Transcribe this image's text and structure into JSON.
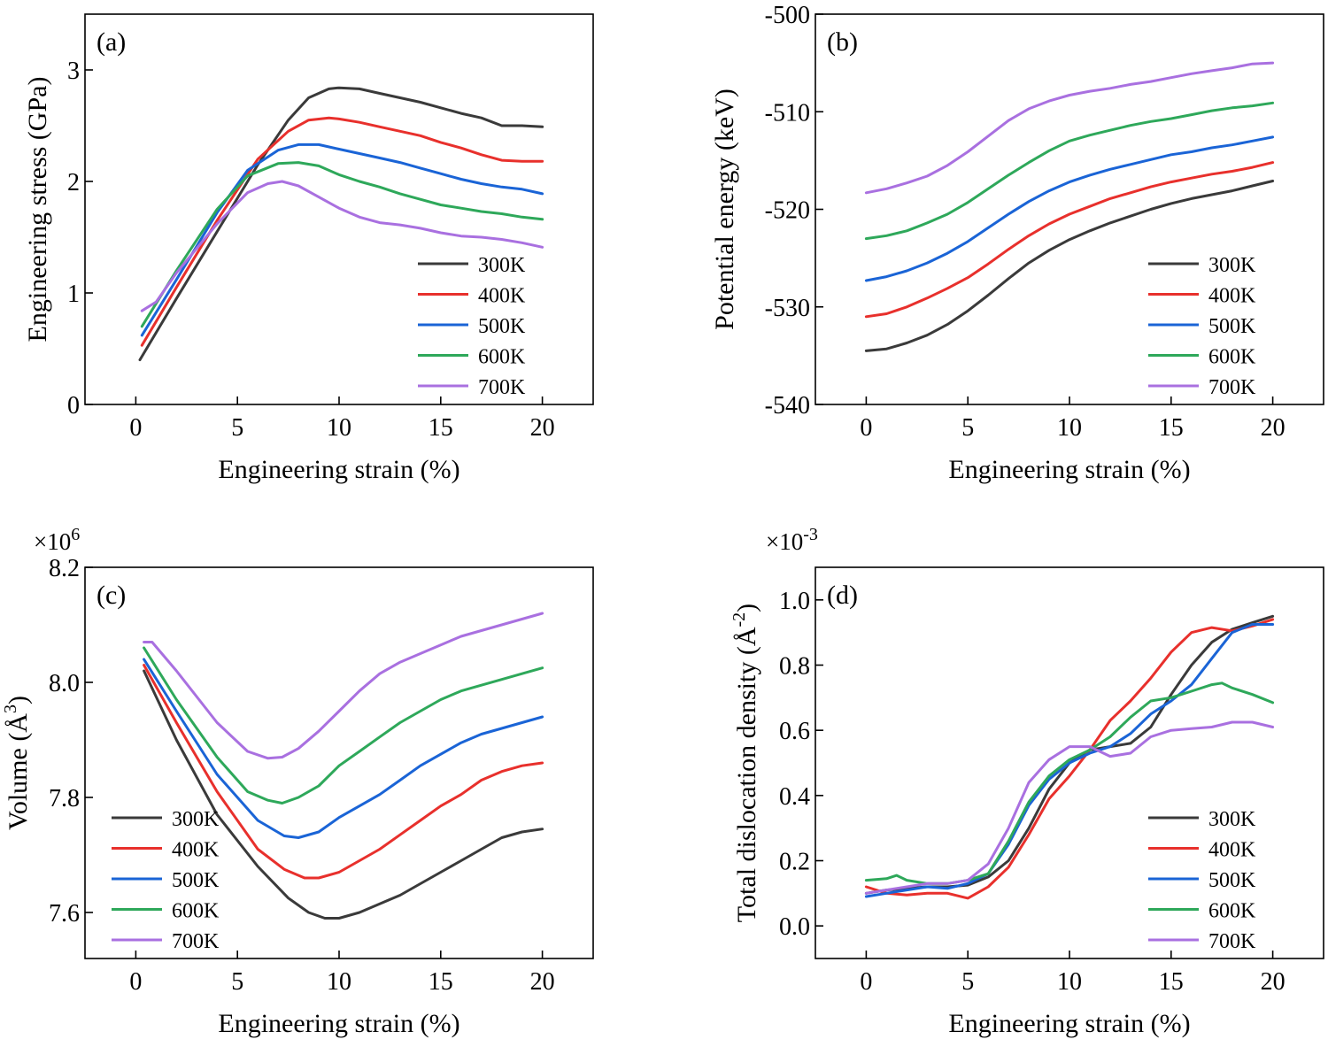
{
  "colors": {
    "300K": "#3a3a3a",
    "400K": "#e8302c",
    "500K": "#1a64d6",
    "600K": "#2ea85a",
    "700K": "#a970e0"
  },
  "chart_data": [
    {
      "id": "a",
      "type": "line",
      "panel_label": "(a)",
      "xlabel": "Engineering strain (%)",
      "ylabel": "Engineering stress (GPa)",
      "xlim": [
        -2.5,
        22.5
      ],
      "ylim": [
        0,
        3.5
      ],
      "xticks": [
        0,
        5,
        10,
        15,
        20
      ],
      "yticks": [
        0,
        1,
        2,
        3
      ],
      "xtick_labels": [
        "0",
        "5",
        "10",
        "15",
        "20"
      ],
      "ytick_labels": [
        "0",
        "1",
        "2",
        "3"
      ],
      "legend_position": "bottom-right",
      "series": [
        {
          "name": "300K",
          "x": [
            0.2,
            2,
            4,
            6,
            7.5,
            8.5,
            9.5,
            10,
            11,
            12,
            13,
            14,
            15,
            16,
            17,
            18,
            19,
            20
          ],
          "y": [
            0.4,
            0.95,
            1.55,
            2.15,
            2.55,
            2.75,
            2.83,
            2.84,
            2.83,
            2.79,
            2.75,
            2.71,
            2.66,
            2.61,
            2.57,
            2.5,
            2.5,
            2.49
          ]
        },
        {
          "name": "400K",
          "x": [
            0.3,
            2,
            4,
            6,
            7.5,
            8.5,
            9.5,
            10,
            11,
            12,
            13,
            14,
            15,
            16,
            17,
            18,
            19,
            20
          ],
          "y": [
            0.53,
            1.05,
            1.65,
            2.2,
            2.45,
            2.55,
            2.57,
            2.56,
            2.53,
            2.49,
            2.45,
            2.41,
            2.35,
            2.3,
            2.24,
            2.19,
            2.18,
            2.18
          ]
        },
        {
          "name": "500K",
          "x": [
            0.3,
            2,
            4,
            5.5,
            7,
            8,
            9,
            10,
            11,
            12,
            13,
            14,
            15,
            16,
            17,
            18,
            19,
            20
          ],
          "y": [
            0.62,
            1.12,
            1.72,
            2.1,
            2.28,
            2.33,
            2.33,
            2.29,
            2.25,
            2.21,
            2.17,
            2.12,
            2.07,
            2.02,
            1.98,
            1.95,
            1.93,
            1.89
          ]
        },
        {
          "name": "600K",
          "x": [
            0.3,
            2,
            4,
            5.5,
            7,
            8,
            9,
            10,
            11,
            12,
            13,
            14,
            15,
            16,
            17,
            18,
            19,
            20
          ],
          "y": [
            0.7,
            1.2,
            1.75,
            2.05,
            2.16,
            2.17,
            2.14,
            2.06,
            2.0,
            1.95,
            1.89,
            1.84,
            1.79,
            1.76,
            1.73,
            1.71,
            1.68,
            1.66
          ]
        },
        {
          "name": "700K",
          "x": [
            0.3,
            1,
            2,
            4,
            5.5,
            6.5,
            7.2,
            8,
            9,
            10,
            11,
            12,
            13,
            14,
            15,
            16,
            17,
            18,
            19,
            20
          ],
          "y": [
            0.84,
            0.92,
            1.18,
            1.62,
            1.9,
            1.98,
            2.0,
            1.96,
            1.86,
            1.76,
            1.68,
            1.63,
            1.61,
            1.58,
            1.54,
            1.51,
            1.5,
            1.48,
            1.45,
            1.41
          ]
        }
      ]
    },
    {
      "id": "b",
      "type": "line",
      "panel_label": "(b)",
      "xlabel": "Engineering strain (%)",
      "ylabel": "Potential energy (keV)",
      "xlim": [
        -2.5,
        22.5
      ],
      "ylim": [
        -540,
        -500
      ],
      "xticks": [
        0,
        5,
        10,
        15,
        20
      ],
      "yticks": [
        -540,
        -530,
        -520,
        -510,
        -500
      ],
      "xtick_labels": [
        "0",
        "5",
        "10",
        "15",
        "20"
      ],
      "ytick_labels": [
        "-540",
        "-530",
        "-520",
        "-510",
        "-500"
      ],
      "legend_position": "bottom-right",
      "series": [
        {
          "name": "300K",
          "x": [
            0,
            1,
            2,
            3,
            4,
            5,
            6,
            7,
            8,
            9,
            10,
            11,
            12,
            13,
            14,
            15,
            16,
            17,
            18,
            19,
            20
          ],
          "y": [
            -534.5,
            -534.3,
            -533.7,
            -532.9,
            -531.8,
            -530.4,
            -528.8,
            -527.1,
            -525.5,
            -524.2,
            -523.1,
            -522.2,
            -521.4,
            -520.7,
            -520.0,
            -519.4,
            -518.9,
            -518.5,
            -518.1,
            -517.6,
            -517.1
          ]
        },
        {
          "name": "400K",
          "x": [
            0,
            1,
            2,
            3,
            4,
            5,
            6,
            7,
            8,
            9,
            10,
            11,
            12,
            13,
            14,
            15,
            16,
            17,
            18,
            19,
            20
          ],
          "y": [
            -531.0,
            -530.7,
            -530.0,
            -529.1,
            -528.1,
            -527.0,
            -525.6,
            -524.1,
            -522.7,
            -521.5,
            -520.5,
            -519.7,
            -518.9,
            -518.3,
            -517.7,
            -517.2,
            -516.8,
            -516.4,
            -516.1,
            -515.7,
            -515.2
          ]
        },
        {
          "name": "500K",
          "x": [
            0,
            1,
            2,
            3,
            4,
            5,
            6,
            7,
            8,
            9,
            10,
            11,
            12,
            13,
            14,
            15,
            16,
            17,
            18,
            19,
            20
          ],
          "y": [
            -527.3,
            -526.9,
            -526.3,
            -525.5,
            -524.5,
            -523.3,
            -521.9,
            -520.5,
            -519.2,
            -518.1,
            -517.2,
            -516.5,
            -515.9,
            -515.4,
            -514.9,
            -514.4,
            -514.1,
            -513.7,
            -513.4,
            -513.0,
            -512.6
          ]
        },
        {
          "name": "600K",
          "x": [
            0,
            1,
            2,
            3,
            4,
            5,
            6,
            7,
            8,
            9,
            10,
            11,
            12,
            13,
            14,
            15,
            16,
            17,
            18,
            19,
            20
          ],
          "y": [
            -523.0,
            -522.7,
            -522.2,
            -521.4,
            -520.5,
            -519.3,
            -517.9,
            -516.5,
            -515.2,
            -514.0,
            -513.0,
            -512.4,
            -511.9,
            -511.4,
            -511.0,
            -510.7,
            -510.3,
            -509.9,
            -509.6,
            -509.4,
            -509.1
          ]
        },
        {
          "name": "700K",
          "x": [
            0,
            1,
            2,
            3,
            4,
            5,
            6,
            7,
            8,
            9,
            10,
            11,
            12,
            13,
            14,
            15,
            16,
            17,
            18,
            19,
            20
          ],
          "y": [
            -518.3,
            -517.9,
            -517.3,
            -516.6,
            -515.5,
            -514.1,
            -512.5,
            -510.9,
            -509.7,
            -508.9,
            -508.3,
            -507.9,
            -507.6,
            -507.2,
            -506.9,
            -506.5,
            -506.1,
            -505.8,
            -505.5,
            -505.1,
            -505.0
          ]
        }
      ]
    },
    {
      "id": "c",
      "type": "line",
      "panel_label": "(c)",
      "xlabel": "Engineering strain (%)",
      "ylabel": "Volume (Å³)",
      "ylabel_main": "Volume (Å",
      "ylabel_sup": "3",
      "ylabel_end": ")",
      "multiplier": "×10",
      "multiplier_exp": "6",
      "xlim": [
        -2.5,
        22.5
      ],
      "ylim": [
        7.52,
        8.2
      ],
      "xticks": [
        0,
        5,
        10,
        15,
        20
      ],
      "yticks": [
        7.6,
        7.8,
        8.0,
        8.2
      ],
      "xtick_labels": [
        "0",
        "5",
        "10",
        "15",
        "20"
      ],
      "ytick_labels": [
        "7.6",
        "7.8",
        "8.0",
        "8.2"
      ],
      "legend_position": "bottom-left",
      "series": [
        {
          "name": "300K",
          "x": [
            0.4,
            2,
            4,
            6,
            7.5,
            8.5,
            9.3,
            10,
            11,
            12,
            13,
            14,
            15,
            16,
            17,
            18,
            19,
            20
          ],
          "y": [
            8.02,
            7.9,
            7.77,
            7.68,
            7.625,
            7.6,
            7.59,
            7.59,
            7.6,
            7.615,
            7.63,
            7.65,
            7.67,
            7.69,
            7.71,
            7.73,
            7.74,
            7.745
          ]
        },
        {
          "name": "400K",
          "x": [
            0.4,
            2,
            4,
            6,
            7.3,
            8.3,
            9,
            10,
            11,
            12,
            13,
            14,
            15,
            16,
            17,
            18,
            19,
            20
          ],
          "y": [
            8.03,
            7.93,
            7.81,
            7.71,
            7.675,
            7.66,
            7.66,
            7.67,
            7.69,
            7.71,
            7.735,
            7.76,
            7.785,
            7.805,
            7.83,
            7.845,
            7.855,
            7.86
          ]
        },
        {
          "name": "500K",
          "x": [
            0.4,
            2,
            4,
            6,
            7.3,
            8,
            9,
            10,
            11,
            12,
            13,
            14,
            15,
            16,
            17,
            18,
            19,
            20
          ],
          "y": [
            8.04,
            7.95,
            7.84,
            7.76,
            7.733,
            7.73,
            7.74,
            7.765,
            7.785,
            7.805,
            7.83,
            7.855,
            7.875,
            7.895,
            7.91,
            7.92,
            7.93,
            7.94
          ]
        },
        {
          "name": "600K",
          "x": [
            0.4,
            2,
            4,
            5.5,
            6.5,
            7.2,
            8,
            9,
            10,
            11,
            12,
            13,
            14,
            15,
            16,
            17,
            18,
            19,
            20
          ],
          "y": [
            8.06,
            7.97,
            7.87,
            7.81,
            7.795,
            7.79,
            7.8,
            7.82,
            7.855,
            7.88,
            7.905,
            7.93,
            7.95,
            7.97,
            7.985,
            7.995,
            8.005,
            8.015,
            8.025
          ]
        },
        {
          "name": "700K",
          "x": [
            0.4,
            0.8,
            2,
            4,
            5.5,
            6.5,
            7.2,
            8,
            9,
            10,
            11,
            12,
            13,
            14,
            15,
            16,
            17,
            18,
            19,
            20
          ],
          "y": [
            8.07,
            8.07,
            8.02,
            7.93,
            7.88,
            7.868,
            7.87,
            7.885,
            7.915,
            7.95,
            7.985,
            8.015,
            8.035,
            8.05,
            8.065,
            8.08,
            8.09,
            8.1,
            8.11,
            8.12
          ]
        }
      ]
    },
    {
      "id": "d",
      "type": "line",
      "panel_label": "(d)",
      "xlabel": "Engineering strain (%)",
      "ylabel": "Total dislocation density (Å⁻²)",
      "ylabel_main": "Total dislocation density (Å",
      "ylabel_sup": "-2",
      "ylabel_end": ")",
      "multiplier": "×10",
      "multiplier_exp": "-3",
      "xlim": [
        -2.5,
        22.5
      ],
      "ylim": [
        -0.1,
        1.1
      ],
      "xticks": [
        0,
        5,
        10,
        15,
        20
      ],
      "yticks": [
        0.0,
        0.2,
        0.4,
        0.6,
        0.8,
        1.0
      ],
      "xtick_labels": [
        "0",
        "5",
        "10",
        "15",
        "20"
      ],
      "ytick_labels": [
        "0.0",
        "0.2",
        "0.4",
        "0.6",
        "0.8",
        "1.0"
      ],
      "legend_position": "bottom-right",
      "series": [
        {
          "name": "300K",
          "x": [
            0,
            1,
            2,
            3,
            4,
            5,
            6,
            7,
            8,
            9,
            10,
            11,
            12,
            13,
            14,
            15,
            16,
            17,
            18,
            19,
            20
          ],
          "y": [
            0.1,
            0.11,
            0.115,
            0.12,
            0.12,
            0.125,
            0.15,
            0.2,
            0.3,
            0.42,
            0.5,
            0.54,
            0.55,
            0.56,
            0.61,
            0.71,
            0.8,
            0.87,
            0.91,
            0.93,
            0.95
          ]
        },
        {
          "name": "400K",
          "x": [
            0,
            1,
            2,
            3,
            4,
            5,
            6,
            7,
            8,
            9,
            10,
            11,
            12,
            13,
            14,
            15,
            16,
            17,
            18,
            19,
            20
          ],
          "y": [
            0.12,
            0.1,
            0.095,
            0.1,
            0.1,
            0.085,
            0.12,
            0.18,
            0.28,
            0.39,
            0.46,
            0.54,
            0.63,
            0.69,
            0.76,
            0.84,
            0.9,
            0.915,
            0.905,
            0.92,
            0.94
          ]
        },
        {
          "name": "500K",
          "x": [
            0,
            1,
            2,
            3,
            4,
            5,
            6,
            7,
            8,
            9,
            10,
            11,
            12,
            13,
            14,
            15,
            16,
            17,
            18,
            19,
            20
          ],
          "y": [
            0.09,
            0.1,
            0.11,
            0.12,
            0.115,
            0.13,
            0.16,
            0.25,
            0.37,
            0.45,
            0.5,
            0.53,
            0.55,
            0.59,
            0.65,
            0.69,
            0.74,
            0.82,
            0.9,
            0.925,
            0.925
          ]
        },
        {
          "name": "600K",
          "x": [
            0,
            1,
            1.5,
            2,
            3,
            4,
            5,
            6,
            7,
            8,
            9,
            10,
            11,
            12,
            13,
            14,
            15,
            16,
            17,
            17.5,
            18,
            19,
            20
          ],
          "y": [
            0.14,
            0.145,
            0.155,
            0.14,
            0.13,
            0.13,
            0.14,
            0.16,
            0.26,
            0.38,
            0.46,
            0.51,
            0.54,
            0.58,
            0.64,
            0.69,
            0.7,
            0.72,
            0.74,
            0.745,
            0.73,
            0.71,
            0.685
          ]
        },
        {
          "name": "700K",
          "x": [
            0,
            1,
            2,
            3,
            4,
            5,
            6,
            7,
            8,
            9,
            10,
            11,
            12,
            13,
            14,
            15,
            16,
            17,
            18,
            19,
            20
          ],
          "y": [
            0.1,
            0.11,
            0.12,
            0.13,
            0.13,
            0.14,
            0.19,
            0.3,
            0.44,
            0.51,
            0.55,
            0.55,
            0.52,
            0.53,
            0.58,
            0.6,
            0.605,
            0.61,
            0.625,
            0.625,
            0.61
          ]
        }
      ]
    }
  ]
}
